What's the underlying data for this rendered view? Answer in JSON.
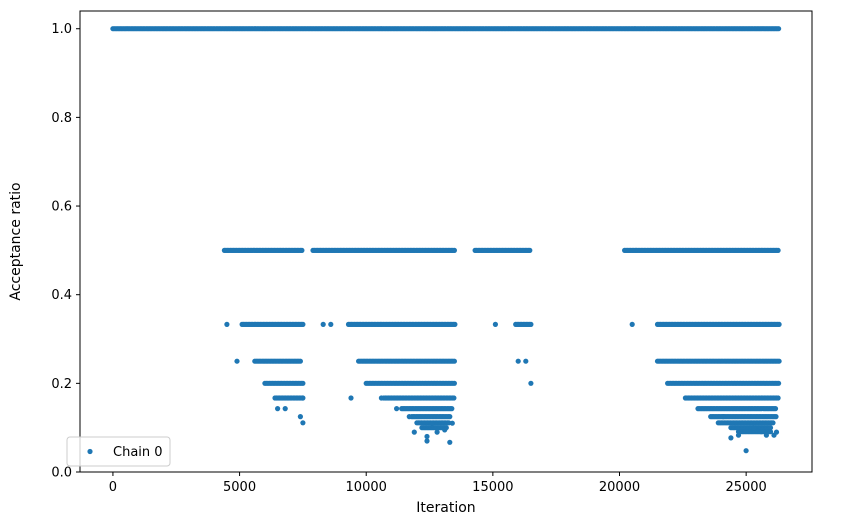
{
  "chart_data": {
    "type": "scatter",
    "title": "",
    "xlabel": "Iteration",
    "ylabel": "Acceptance ratio",
    "xlim": [
      -1300,
      27600
    ],
    "ylim": [
      0.0,
      1.04
    ],
    "xticks": [
      0,
      5000,
      10000,
      15000,
      20000,
      25000
    ],
    "yticks": [
      0.0,
      0.2,
      0.4,
      0.6,
      0.8,
      1.0
    ],
    "xtick_labels": [
      "0",
      "5000",
      "10000",
      "15000",
      "20000",
      "25000"
    ],
    "ytick_labels": [
      "0.0",
      "0.2",
      "0.4",
      "0.6",
      "0.8",
      "1.0"
    ],
    "grid": false,
    "legend_position": "lower-left",
    "series": [
      {
        "name": "Chain 0",
        "color": "#1f77b4",
        "marker": "circle",
        "bands": [
          {
            "y": 1.0,
            "ranges": [
              [
                0,
                26300
              ]
            ]
          },
          {
            "y": 0.5,
            "ranges": [
              [
                4400,
                7500
              ],
              [
                7900,
                13500
              ],
              [
                14300,
                16500
              ],
              [
                20200,
                26300
              ]
            ]
          },
          {
            "y": 0.333,
            "ranges": [
              [
                5100,
                7500
              ],
              [
                9300,
                13500
              ],
              [
                15900,
                16500
              ],
              [
                21500,
                26300
              ]
            ]
          },
          {
            "y": 0.25,
            "ranges": [
              [
                5600,
                7400
              ],
              [
                9700,
                13500
              ],
              [
                21500,
                26300
              ]
            ]
          },
          {
            "y": 0.2,
            "ranges": [
              [
                6000,
                7500
              ],
              [
                10000,
                13500
              ],
              [
                21900,
                26300
              ]
            ]
          },
          {
            "y": 0.167,
            "ranges": [
              [
                6400,
                7500
              ],
              [
                10700,
                13500
              ],
              [
                22600,
                26300
              ]
            ]
          },
          {
            "y": 0.143,
            "ranges": [
              [
                11400,
                13400
              ],
              [
                23100,
                26200
              ]
            ]
          },
          {
            "y": 0.125,
            "ranges": [
              [
                11800,
                13300
              ],
              [
                23600,
                26200
              ]
            ]
          },
          {
            "y": 0.111,
            "ranges": [
              [
                12000,
                13300
              ],
              [
                23900,
                26100
              ]
            ]
          },
          {
            "y": 0.1,
            "ranges": [
              [
                12200,
                13200
              ],
              [
                24400,
                26000
              ]
            ]
          },
          {
            "y": 0.091,
            "ranges": [
              [
                24700,
                26000
              ]
            ]
          }
        ],
        "points": [
          [
            4500,
            0.333
          ],
          [
            8300,
            0.333
          ],
          [
            8600,
            0.333
          ],
          [
            15100,
            0.333
          ],
          [
            20500,
            0.333
          ],
          [
            4900,
            0.25
          ],
          [
            16000,
            0.25
          ],
          [
            16300,
            0.25
          ],
          [
            9400,
            0.167
          ],
          [
            10600,
            0.167
          ],
          [
            16500,
            0.2
          ],
          [
            6500,
            0.143
          ],
          [
            6800,
            0.143
          ],
          [
            7400,
            0.125
          ],
          [
            7500,
            0.111
          ],
          [
            7500,
            0.167
          ],
          [
            11200,
            0.143
          ],
          [
            11700,
            0.125
          ],
          [
            11900,
            0.09
          ],
          [
            12400,
            0.08
          ],
          [
            12600,
            0.11
          ],
          [
            12800,
            0.09
          ],
          [
            13100,
            0.095
          ],
          [
            13300,
            0.067
          ],
          [
            13400,
            0.11
          ],
          [
            12400,
            0.07
          ],
          [
            24100,
            0.125
          ],
          [
            24400,
            0.077
          ],
          [
            24700,
            0.083
          ],
          [
            25000,
            0.048
          ],
          [
            25300,
            0.1
          ],
          [
            25600,
            0.091
          ],
          [
            25800,
            0.083
          ],
          [
            26100,
            0.083
          ],
          [
            26200,
            0.09
          ]
        ]
      }
    ]
  }
}
